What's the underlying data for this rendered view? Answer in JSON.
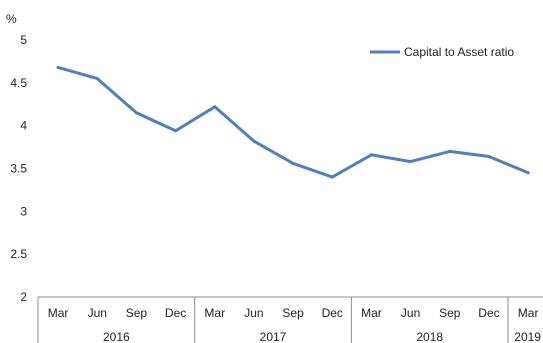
{
  "chart_data": {
    "type": "line",
    "unit_label": "%",
    "ylim": [
      2,
      5
    ],
    "yticks": [
      "2",
      "2.5",
      "3",
      "3.5",
      "4",
      "4.5",
      "5"
    ],
    "categories": [
      "Mar",
      "Jun",
      "Sep",
      "Dec",
      "Mar",
      "Jun",
      "Sep",
      "Dec",
      "Mar",
      "Jun",
      "Sep",
      "Dec",
      "Mar"
    ],
    "year_groups": [
      {
        "label": "2016",
        "count": 4
      },
      {
        "label": "2017",
        "count": 4
      },
      {
        "label": "2018",
        "count": 4
      },
      {
        "label": "2019",
        "count": 1
      }
    ],
    "series": [
      {
        "name": "Capital to Asset ratio",
        "color": "#4f7fbf",
        "values": [
          4.68,
          4.55,
          4.15,
          3.94,
          4.22,
          3.82,
          3.56,
          3.4,
          3.66,
          3.58,
          3.7,
          3.64,
          3.45
        ]
      }
    ],
    "legend_position": "top-right",
    "grid": false
  }
}
